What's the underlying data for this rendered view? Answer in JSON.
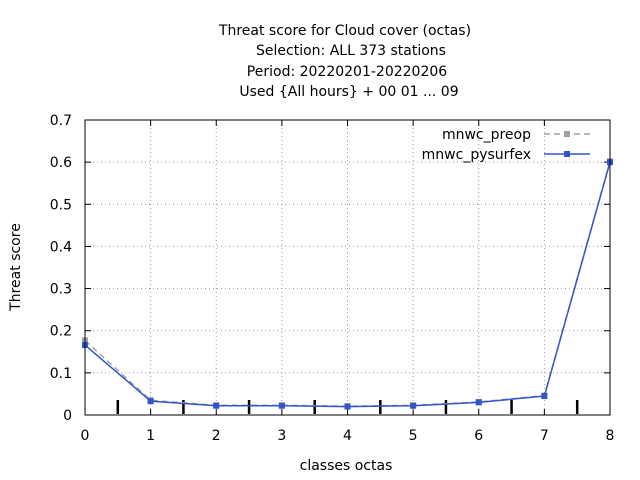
{
  "chart_data": {
    "type": "line",
    "title_lines": [
      "Threat score  for Cloud cover (octas)",
      "Selection: ALL    373 stations",
      "Period: 20220201-20220206",
      "Used {All hours} + 00 01 ... 09"
    ],
    "xlabel": "classes octas",
    "ylabel": "Threat score",
    "xlim": [
      0,
      8
    ],
    "ylim": [
      0,
      0.7
    ],
    "x_ticks": [
      "0",
      "1",
      "2",
      "3",
      "4",
      "5",
      "6",
      "7",
      "8"
    ],
    "y_ticks": [
      "0",
      "0.1",
      "0.2",
      "0.3",
      "0.4",
      "0.5",
      "0.6",
      "0.7"
    ],
    "grid": true,
    "legend_position": "top-right",
    "x": [
      0,
      1,
      2,
      3,
      4,
      5,
      6,
      7,
      8
    ],
    "series": [
      {
        "name": "mnwc_preop",
        "color": "#a0a0a0",
        "dash": true,
        "values": [
          0.177,
          0.035,
          0.023,
          0.023,
          0.021,
          0.023,
          0.031,
          0.046,
          0.602
        ]
      },
      {
        "name": "mnwc_pysurfex",
        "color": "#3355cc",
        "dash": false,
        "values": [
          0.166,
          0.033,
          0.022,
          0.022,
          0.02,
          0.022,
          0.03,
          0.045,
          0.6
        ]
      }
    ],
    "class_boundaries": [
      0.5,
      1.5,
      2.5,
      3.5,
      4.5,
      5.5,
      6.5,
      7.5
    ]
  }
}
